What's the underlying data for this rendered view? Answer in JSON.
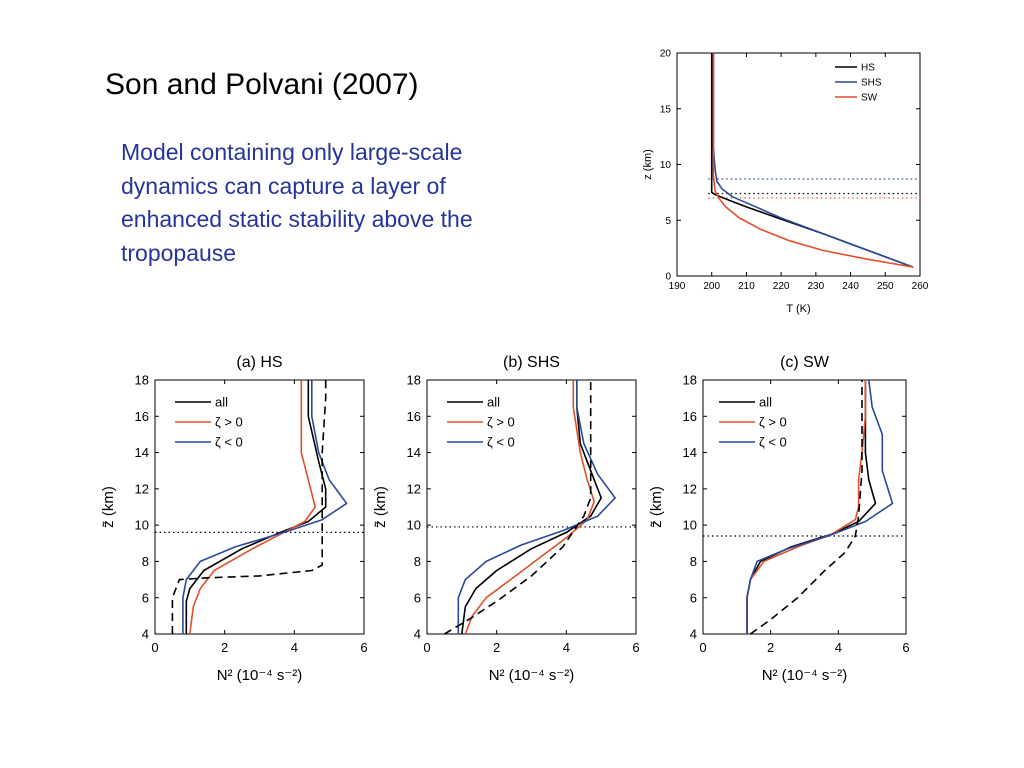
{
  "slide": {
    "title": "Son and Polvani (2007)",
    "text": "Model containing only large-scale dynamics can capture a layer of enhanced static stability above the tropopause"
  },
  "chart_data": [
    {
      "type": "line",
      "xlabel": "T (K)",
      "ylabel": "z (km)",
      "xlim": [
        190,
        260
      ],
      "ylim": [
        0,
        20
      ],
      "xticks": [
        190,
        200,
        210,
        220,
        230,
        240,
        250,
        260
      ],
      "yticks": [
        0,
        5,
        10,
        15,
        20
      ],
      "legend_position": "top-right",
      "series": [
        {
          "name": "HS",
          "color": "#000000",
          "x": [
            258,
            245,
            232,
            220,
            210,
            205,
            201,
            200,
            200,
            200,
            200,
            200
          ],
          "y": [
            0.8,
            2.3,
            3.8,
            5.1,
            6.2,
            6.8,
            7.3,
            7.5,
            9.0,
            12.0,
            15.0,
            20.0
          ]
        },
        {
          "name": "SHS",
          "color": "#2a4a9a",
          "x": [
            258,
            245,
            232,
            220,
            212,
            206,
            203,
            201.5,
            201,
            200.5,
            200.5,
            200.5
          ],
          "y": [
            0.8,
            2.3,
            3.8,
            5.2,
            6.3,
            7.1,
            7.8,
            8.5,
            9.5,
            11.5,
            15.0,
            20.0
          ]
        },
        {
          "name": "SW",
          "color": "#e2502b",
          "x": [
            258,
            245,
            232,
            222,
            214,
            208,
            204,
            202,
            201,
            200.5,
            200.5,
            200.5
          ],
          "y": [
            0.8,
            1.5,
            2.3,
            3.2,
            4.2,
            5.2,
            6.2,
            7.0,
            7.6,
            9.0,
            12.0,
            20.0
          ]
        }
      ],
      "reference_lines": [
        {
          "y": 8.7,
          "color": "#2a4a9a",
          "style": "dotted"
        },
        {
          "y": 7.4,
          "color": "#000000",
          "style": "dotted"
        },
        {
          "y": 7.0,
          "color": "#e2502b",
          "style": "dotted"
        }
      ]
    },
    {
      "type": "line",
      "title": "(a) HS",
      "xlabel": "N² (10⁻⁴ s⁻²)",
      "ylabel": "z̃ (km)",
      "xlim": [
        0,
        6
      ],
      "ylim": [
        4,
        18
      ],
      "xticks": [
        0,
        2,
        4,
        6
      ],
      "yticks": [
        4,
        6,
        8,
        10,
        12,
        14,
        16,
        18
      ],
      "legend_position": "top-left",
      "series": [
        {
          "name": "all",
          "color": "#000000",
          "x": [
            0.9,
            0.9,
            1.0,
            1.4,
            2.5,
            3.6,
            4.4,
            4.9,
            4.9,
            4.7,
            4.4,
            4.4
          ],
          "y": [
            4.0,
            5.8,
            6.5,
            7.5,
            8.7,
            9.6,
            10.2,
            11.0,
            12.0,
            13.5,
            16.0,
            18.0
          ]
        },
        {
          "name": "ζ > 0",
          "color": "#e2502b",
          "x": [
            1.0,
            1.1,
            1.3,
            1.7,
            2.8,
            3.6,
            4.3,
            4.6,
            4.4,
            4.2,
            4.2,
            4.2
          ],
          "y": [
            4.0,
            5.5,
            6.5,
            7.5,
            8.7,
            9.5,
            10.2,
            11.0,
            12.5,
            14.0,
            16.0,
            18.0
          ]
        },
        {
          "name": "ζ < 0",
          "color": "#2a4a9a",
          "x": [
            0.8,
            0.8,
            0.9,
            1.3,
            2.3,
            3.7,
            4.8,
            5.5,
            5.0,
            4.7,
            4.5,
            4.5
          ],
          "y": [
            4.0,
            6.0,
            7.0,
            8.0,
            8.8,
            9.6,
            10.3,
            11.2,
            12.5,
            14.0,
            16.0,
            18.0
          ]
        },
        {
          "name": "",
          "color": "#000000",
          "style": "dashed",
          "x": [
            0.5,
            0.5,
            0.7,
            1.5,
            3.0,
            4.5,
            4.8,
            4.8,
            4.8,
            4.9,
            4.9
          ],
          "y": [
            4.0,
            6.0,
            7.0,
            7.1,
            7.2,
            7.5,
            7.8,
            10.0,
            14.0,
            17.0,
            18.0
          ]
        }
      ],
      "reference_lines": [
        {
          "y": 9.6,
          "color": "#000000",
          "style": "dotted"
        }
      ]
    },
    {
      "type": "line",
      "title": "(b) SHS",
      "xlabel": "N² (10⁻⁴ s⁻²)",
      "ylabel": "z̃ (km)",
      "xlim": [
        0,
        6
      ],
      "ylim": [
        4,
        18
      ],
      "xticks": [
        0,
        2,
        4,
        6
      ],
      "yticks": [
        4,
        6,
        8,
        10,
        12,
        14,
        16,
        18
      ],
      "legend_position": "top-left",
      "series": [
        {
          "name": "all",
          "color": "#000000",
          "x": [
            1.0,
            1.1,
            1.4,
            2.0,
            3.0,
            4.0,
            4.7,
            5.0,
            4.7,
            4.4,
            4.3,
            4.3
          ],
          "y": [
            4.0,
            5.5,
            6.5,
            7.5,
            8.7,
            9.6,
            10.5,
            11.5,
            13.0,
            14.5,
            16.5,
            18.0
          ]
        },
        {
          "name": "ζ > 0",
          "color": "#e2502b",
          "x": [
            1.1,
            1.3,
            1.7,
            2.4,
            3.3,
            4.0,
            4.6,
            4.8,
            4.6,
            4.4,
            4.2,
            4.2
          ],
          "y": [
            4.0,
            5.0,
            6.0,
            7.0,
            8.3,
            9.3,
            10.3,
            11.3,
            12.5,
            14.0,
            16.5,
            18.0
          ]
        },
        {
          "name": "ζ < 0",
          "color": "#2a4a9a",
          "x": [
            0.9,
            0.9,
            1.1,
            1.7,
            2.7,
            3.9,
            4.9,
            5.4,
            4.9,
            4.5,
            4.3,
            4.3
          ],
          "y": [
            4.0,
            6.0,
            7.0,
            8.0,
            8.9,
            9.7,
            10.5,
            11.5,
            12.8,
            14.5,
            16.5,
            18.0
          ]
        },
        {
          "name": "",
          "color": "#000000",
          "style": "dashed",
          "x": [
            0.5,
            1.2,
            2.0,
            3.0,
            3.9,
            4.5,
            4.7,
            4.7,
            4.7
          ],
          "y": [
            4.0,
            4.8,
            5.8,
            7.2,
            8.8,
            10.5,
            11.5,
            14.0,
            18.0
          ]
        }
      ],
      "reference_lines": [
        {
          "y": 9.9,
          "color": "#000000",
          "style": "dotted"
        }
      ]
    },
    {
      "type": "line",
      "title": "(c) SW",
      "xlabel": "N² (10⁻⁴ s⁻²)",
      "ylabel": "z̃ (km)",
      "xlim": [
        0,
        6
      ],
      "ylim": [
        4,
        18
      ],
      "xticks": [
        0,
        2,
        4,
        6
      ],
      "yticks": [
        4,
        6,
        8,
        10,
        12,
        14,
        16,
        18
      ],
      "legend_position": "top-left",
      "series": [
        {
          "name": "all",
          "color": "#000000",
          "x": [
            1.3,
            1.3,
            1.4,
            1.7,
            2.6,
            3.8,
            4.6,
            5.1,
            4.9,
            4.8,
            4.8,
            4.8
          ],
          "y": [
            4.0,
            6.0,
            7.0,
            8.0,
            8.8,
            9.5,
            10.2,
            11.2,
            12.5,
            14.0,
            16.0,
            18.0
          ]
        },
        {
          "name": "ζ > 0",
          "color": "#e2502b",
          "x": [
            1.3,
            1.3,
            1.4,
            1.8,
            2.8,
            3.8,
            4.5,
            4.6,
            4.6,
            4.7,
            4.8,
            4.8
          ],
          "y": [
            4.0,
            6.0,
            7.0,
            8.0,
            8.8,
            9.5,
            10.3,
            11.0,
            12.5,
            14.0,
            16.0,
            18.0
          ]
        },
        {
          "name": "ζ < 0",
          "color": "#2a4a9a",
          "x": [
            1.3,
            1.3,
            1.4,
            1.6,
            2.5,
            3.7,
            4.8,
            5.6,
            5.3,
            5.3,
            5.0,
            4.9
          ],
          "y": [
            4.0,
            6.0,
            7.0,
            8.0,
            8.7,
            9.4,
            10.2,
            11.2,
            13.0,
            15.0,
            16.5,
            18.0
          ]
        },
        {
          "name": "",
          "color": "#000000",
          "style": "dashed",
          "x": [
            1.4,
            2.0,
            2.8,
            3.6,
            4.2,
            4.5,
            4.6,
            4.7,
            4.7
          ],
          "y": [
            4.0,
            4.8,
            6.0,
            7.5,
            8.5,
            9.4,
            10.5,
            13.0,
            18.0
          ]
        }
      ],
      "reference_lines": [
        {
          "y": 9.4,
          "color": "#000000",
          "style": "dotted"
        }
      ]
    }
  ]
}
